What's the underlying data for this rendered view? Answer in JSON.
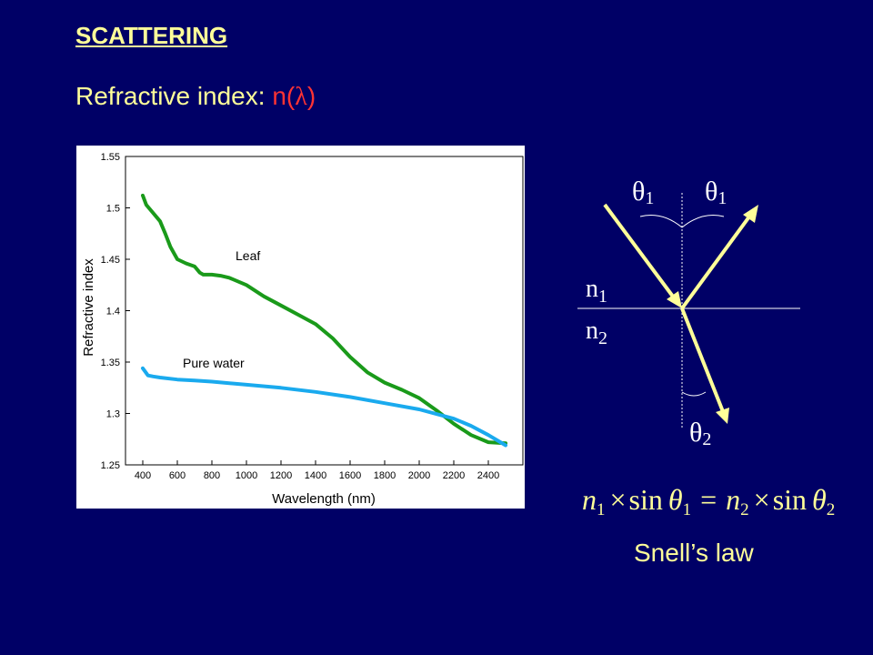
{
  "slide": {
    "title": "SCATTERING",
    "subtitle_prefix": "Refractive index: ",
    "subtitle_func": "n(",
    "subtitle_lambda": "λ",
    "subtitle_close": ")",
    "snell_label": "Snell’s law"
  },
  "colors": {
    "background": "#000066",
    "text_yellow": "#ffff99",
    "text_red": "#ff3333",
    "leaf": "#1a9a1a",
    "water": "#1aaaee",
    "ray": "#ffff99"
  },
  "diagram": {
    "theta1_in": "θ",
    "theta1_in_sub": "1",
    "theta1_out": "θ",
    "theta1_out_sub": "1",
    "theta2": "θ",
    "theta2_sub": "2",
    "n1": "n",
    "n1_sub": "1",
    "n2": "n",
    "n2_sub": "2",
    "equation": {
      "n1": "n",
      "n1_sub": "1",
      "times1": "×",
      "sin1": "sin",
      "theta1": "θ",
      "theta1_sub": "1",
      "equals": "=",
      "n2": "n",
      "n2_sub": "2",
      "times2": "×",
      "sin2": "sin",
      "theta2": "θ",
      "theta2_sub": "2"
    }
  },
  "chart_data": {
    "type": "line",
    "xlabel": "Wavelength (nm)",
    "ylabel": "Refractive index",
    "xlim": [
      300,
      2600
    ],
    "ylim": [
      1.25,
      1.55
    ],
    "xticks": [
      400,
      600,
      800,
      1000,
      1200,
      1400,
      1600,
      1800,
      2000,
      2200,
      2400
    ],
    "yticks": [
      1.25,
      1.3,
      1.35,
      1.4,
      1.45,
      1.5,
      1.55
    ],
    "grid": false,
    "legend": "none",
    "series": [
      {
        "name": "Leaf",
        "color": "#1a9a1a",
        "x": [
          400,
          420,
          450,
          500,
          530,
          560,
          600,
          650,
          700,
          730,
          750,
          800,
          850,
          900,
          1000,
          1100,
          1200,
          1300,
          1400,
          1500,
          1600,
          1700,
          1800,
          1900,
          2000,
          2100,
          2200,
          2300,
          2400,
          2500
        ],
        "y": [
          1.512,
          1.503,
          1.497,
          1.487,
          1.475,
          1.462,
          1.45,
          1.446,
          1.443,
          1.437,
          1.435,
          1.435,
          1.434,
          1.432,
          1.425,
          1.414,
          1.405,
          1.396,
          1.387,
          1.373,
          1.355,
          1.34,
          1.33,
          1.323,
          1.315,
          1.303,
          1.29,
          1.279,
          1.272,
          1.271
        ]
      },
      {
        "name": "Pure water",
        "color": "#1aaaee",
        "x": [
          400,
          430,
          460,
          500,
          600,
          700,
          800,
          1000,
          1200,
          1400,
          1600,
          1800,
          2000,
          2200,
          2300,
          2400,
          2500
        ],
        "y": [
          1.344,
          1.337,
          1.336,
          1.335,
          1.333,
          1.332,
          1.331,
          1.328,
          1.325,
          1.321,
          1.316,
          1.31,
          1.304,
          1.295,
          1.288,
          1.279,
          1.269
        ]
      }
    ]
  }
}
